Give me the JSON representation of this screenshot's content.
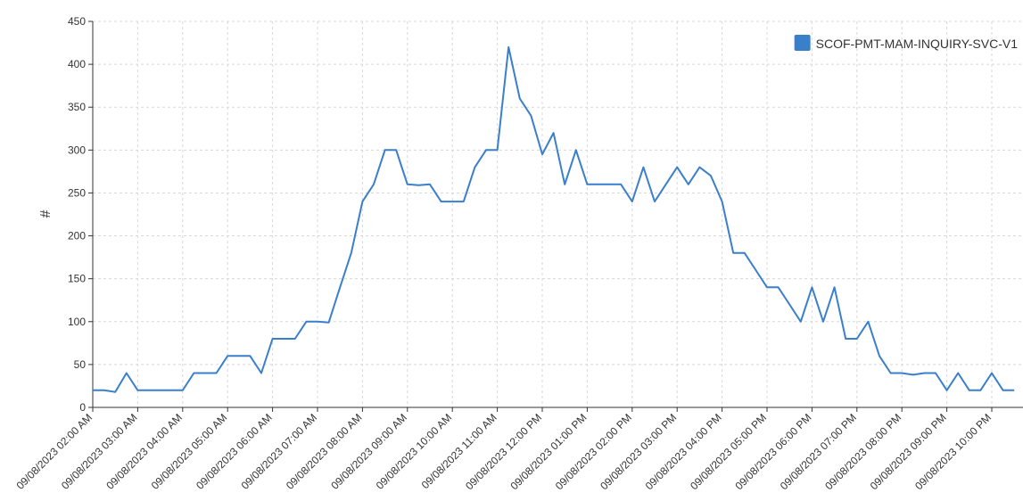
{
  "chart_data": {
    "type": "line",
    "y_label": "#",
    "categories": [
      "09/08/2023 02:00 AM",
      null,
      null,
      null,
      "09/08/2023 03:00 AM",
      null,
      null,
      null,
      "09/08/2023 04:00 AM",
      null,
      null,
      null,
      "09/08/2023 05:00 AM",
      null,
      null,
      null,
      "09/08/2023 06:00 AM",
      null,
      null,
      null,
      "09/08/2023 07:00 AM",
      null,
      null,
      null,
      "09/08/2023 08:00 AM",
      null,
      null,
      null,
      "09/08/2023 09:00 AM",
      null,
      null,
      null,
      "09/08/2023 10:00 AM",
      null,
      null,
      null,
      "09/08/2023 11:00 AM",
      null,
      null,
      null,
      "09/08/2023 12:00 PM",
      null,
      null,
      null,
      "09/08/2023 01:00 PM",
      null,
      null,
      null,
      "09/08/2023 02:00 PM",
      null,
      null,
      null,
      "09/08/2023 03:00 PM",
      null,
      null,
      null,
      "09/08/2023 04:00 PM",
      null,
      null,
      null,
      "09/08/2023 05:00 PM",
      null,
      null,
      null,
      "09/08/2023 06:00 PM",
      null,
      null,
      null,
      "09/08/2023 07:00 PM",
      null,
      null,
      null,
      "09/08/2023 08:00 PM",
      null,
      null,
      null,
      "09/08/2023 09:00 PM",
      null,
      null,
      null,
      "09/08/2023 10:00 PM",
      null,
      null
    ],
    "series": [
      {
        "name": "SCOF-PMT-MAM-INQUIRY-SVC-V1",
        "color": "#3a7fcc",
        "values": [
          20,
          20,
          18,
          40,
          20,
          20,
          20,
          20,
          20,
          40,
          40,
          40,
          60,
          60,
          60,
          40,
          80,
          80,
          80,
          100,
          100,
          99,
          140,
          180,
          240,
          260,
          300,
          300,
          260,
          259,
          260,
          240,
          240,
          240,
          280,
          300,
          300,
          420,
          360,
          340,
          295,
          320,
          260,
          300,
          260,
          260,
          260,
          260,
          240,
          280,
          240,
          260,
          280,
          260,
          280,
          270,
          240,
          180,
          180,
          160,
          140,
          140,
          120,
          100,
          140,
          100,
          140,
          80,
          80,
          100,
          60,
          40,
          40,
          38,
          40,
          40,
          20,
          40,
          20,
          20,
          40,
          20,
          20
        ]
      }
    ],
    "ylim": [
      0,
      450
    ],
    "yticks": [
      0,
      50,
      100,
      150,
      200,
      250,
      300,
      350,
      400,
      450
    ],
    "grid": true,
    "legend": "top-right"
  }
}
